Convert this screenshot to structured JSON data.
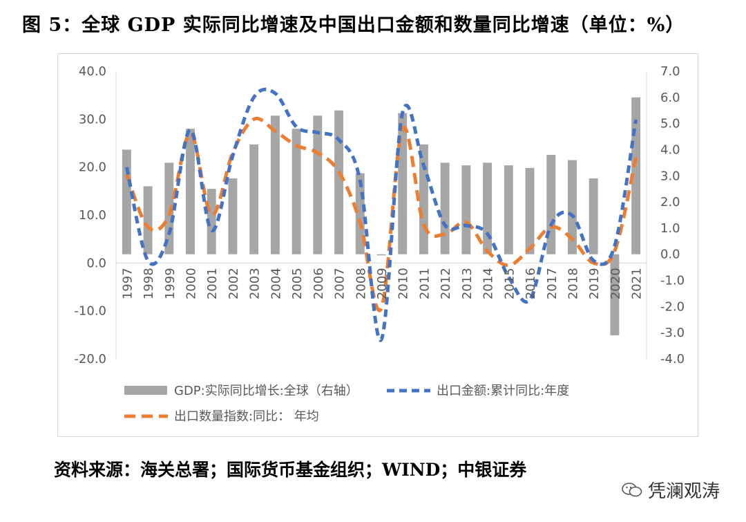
{
  "figure": {
    "title": "图 5：全球 GDP 实际同比增速及中国出口金额和数量同比增速（单位：%）",
    "source": "资料来源：海关总署；国际货币基金组织；WIND；中银证券",
    "watermark": "凭澜观涛"
  },
  "chart_data": {
    "type": "bar",
    "categories": [
      "1997",
      "1998",
      "1999",
      "2000",
      "2001",
      "2002",
      "2003",
      "2004",
      "2005",
      "2006",
      "2007",
      "2008",
      "2009",
      "2010",
      "2011",
      "2012",
      "2013",
      "2014",
      "2015",
      "2016",
      "2017",
      "2018",
      "2019",
      "2020",
      "2021"
    ],
    "left_axis": {
      "min": -20,
      "max": 40,
      "step": 10,
      "ticks": [
        "40.0",
        "30.0",
        "20.0",
        "10.0",
        "0.0",
        "-10.0",
        "-20.0"
      ]
    },
    "right_axis": {
      "min": -4,
      "max": 7,
      "step": 1,
      "ticks": [
        "7.0",
        "6.0",
        "5.0",
        "4.0",
        "3.0",
        "2.0",
        "1.0",
        "0.0",
        "-1.0",
        "-2.0",
        "-3.0",
        "-4.0"
      ]
    },
    "series": [
      {
        "name": "GDP:实际同比增长:全球（右轴）",
        "type": "bar",
        "axis": "right",
        "color": "#a6a6a6",
        "values": [
          4.0,
          2.6,
          3.5,
          4.8,
          2.5,
          2.9,
          4.2,
          5.3,
          4.8,
          5.3,
          5.5,
          3.1,
          0.0,
          5.4,
          4.2,
          3.5,
          3.4,
          3.5,
          3.4,
          3.3,
          3.8,
          3.6,
          2.9,
          -3.1,
          6.0
        ]
      },
      {
        "name": "出口金额:累计同比:年度",
        "type": "line",
        "style": "dashed",
        "axis": "left",
        "color": "#4472c4",
        "values": [
          20.0,
          0.5,
          6.1,
          27.8,
          6.8,
          22.4,
          34.6,
          35.4,
          28.4,
          27.2,
          25.7,
          17.2,
          -16.0,
          31.3,
          20.3,
          7.9,
          7.8,
          6.1,
          -2.9,
          -7.7,
          7.9,
          9.9,
          0.5,
          3.6,
          29.9
        ]
      },
      {
        "name": "出口数量指数:同比： 年均",
        "type": "line",
        "style": "dashed",
        "axis": "left",
        "color": "#ed7d31",
        "values": [
          18.5,
          7.5,
          10.0,
          27.0,
          10.0,
          23.0,
          30.0,
          27.5,
          24.5,
          23.0,
          19.0,
          8.5,
          -9.5,
          28.0,
          8.0,
          6.0,
          8.5,
          2.5,
          -0.5,
          3.0,
          7.5,
          5.0,
          0.0,
          2.5,
          22.0
        ]
      }
    ],
    "grid": false,
    "legend_position": "bottom"
  }
}
